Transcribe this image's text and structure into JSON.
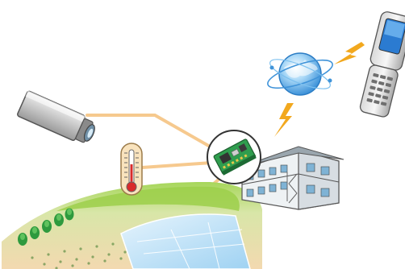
{
  "diagram": {
    "nodes": [
      {
        "id": "hub",
        "icon": "circuit-board-icon"
      },
      {
        "id": "camera",
        "icon": "security-camera-icon"
      },
      {
        "id": "thermometer",
        "icon": "thermometer-icon"
      },
      {
        "id": "farmland",
        "icon": "farm-field-icon"
      },
      {
        "id": "building",
        "icon": "apartment-building-icon"
      },
      {
        "id": "network",
        "icon": "globe-network-icon"
      },
      {
        "id": "phone",
        "icon": "flip-phone-icon"
      }
    ],
    "links": [
      {
        "from": "camera",
        "to": "hub",
        "style": "wired"
      },
      {
        "from": "thermometer",
        "to": "hub",
        "style": "wired"
      },
      {
        "from": "farmland",
        "to": "hub",
        "style": "wired"
      },
      {
        "from": "building",
        "to": "hub",
        "style": "wired"
      },
      {
        "from": "hub",
        "to": "network",
        "style": "wireless"
      },
      {
        "from": "network",
        "to": "phone",
        "style": "wireless"
      }
    ],
    "colors": {
      "wire": "#f6c98e",
      "lightning": "#f2a81e",
      "grass": "#8cc63f",
      "hub_board": "#2f9d4e",
      "globe": "#4aa8e8"
    }
  }
}
